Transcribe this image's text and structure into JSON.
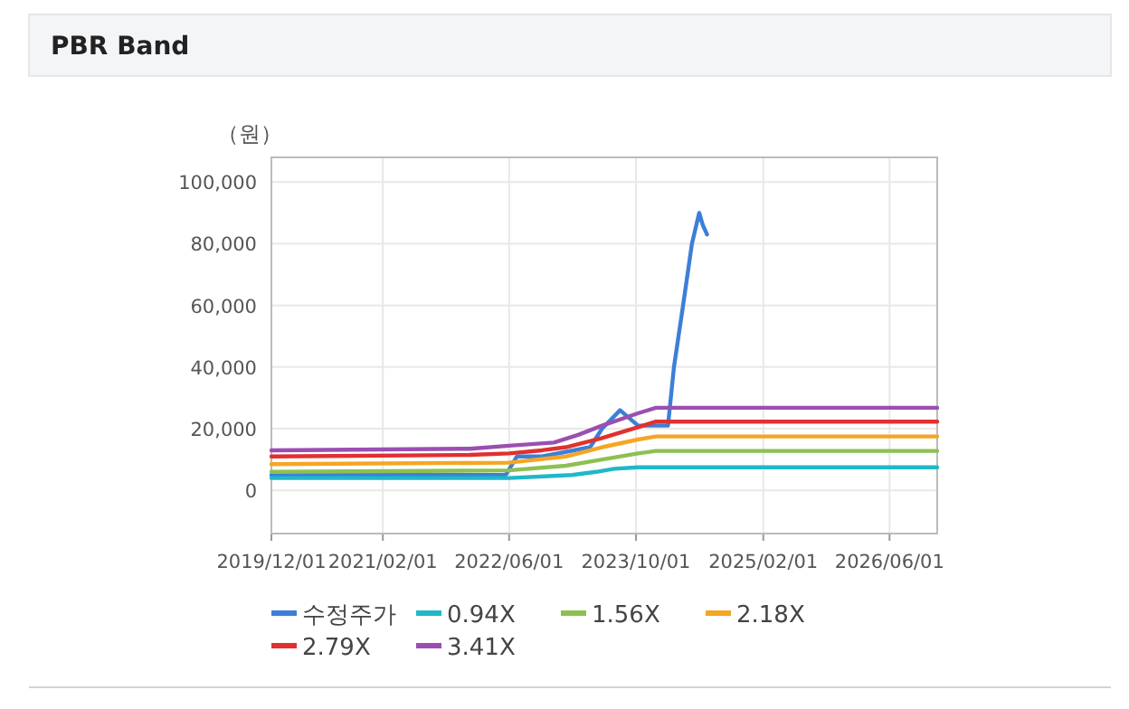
{
  "chart_data": {
    "type": "line",
    "title": "PBR Band",
    "ylabel": "（원）",
    "xlim": [
      "2019-12-01",
      "2026-12-01"
    ],
    "xticks": [
      {
        "value": "2019-12-01",
        "label": "2019/12/01"
      },
      {
        "value": "2021-02-01",
        "label": "2021/02/01"
      },
      {
        "value": "2022-06-01",
        "label": "2022/06/01"
      },
      {
        "value": "2023-10-01",
        "label": "2023/10/01"
      },
      {
        "value": "2025-02-01",
        "label": "2025/02/01"
      },
      {
        "value": "2026-06-01",
        "label": "2026/06/01"
      }
    ],
    "ylim": [
      -14000,
      108000
    ],
    "yticks": [
      {
        "value": 0,
        "label": "0"
      },
      {
        "value": 20000,
        "label": "20,000"
      },
      {
        "value": 40000,
        "label": "40,000"
      },
      {
        "value": 60000,
        "label": "60,000"
      },
      {
        "value": 80000,
        "label": "80,000"
      },
      {
        "value": 100000,
        "label": "100,000"
      }
    ],
    "grid": true,
    "legend": "bottom",
    "marker": "none",
    "line_style": "solid",
    "series": [
      {
        "name": "수정주가",
        "color": "#3c7fd8",
        "x": [
          "2019-12-01",
          "2022-05-19",
          "2022-07-01",
          "2022-10-05",
          "2023-04-08",
          "2023-05-24",
          "2023-08-01",
          "2023-10-09",
          "2024-02-01",
          "2024-02-24",
          "2024-03-30",
          "2024-05-03",
          "2024-05-31",
          "2024-06-14",
          "2024-06-30"
        ],
        "values": [
          5000,
          5000,
          11000,
          11000,
          14000,
          20000,
          26000,
          21000,
          21000,
          40000,
          60000,
          80000,
          90000,
          86000,
          83000
        ]
      },
      {
        "name": "0.94X",
        "color": "#1fb8c9",
        "x": [
          "2019-12-01",
          "2022-05-31",
          "2023-01-28",
          "2023-05-01",
          "2023-07-09",
          "2023-10-09",
          "2026-12-01"
        ],
        "values": [
          4000,
          4000,
          5000,
          6000,
          7000,
          7500,
          7500
        ]
      },
      {
        "name": "1.56X",
        "color": "#8cc152",
        "x": [
          "2019-12-01",
          "2022-05-31",
          "2023-01-05",
          "2023-05-24",
          "2023-10-09",
          "2023-12-17",
          "2026-12-01"
        ],
        "values": [
          6000,
          6500,
          8000,
          10000,
          12000,
          12800,
          12800
        ]
      },
      {
        "name": "2.18X",
        "color": "#f5a623",
        "x": [
          "2019-12-01",
          "2022-05-31",
          "2023-01-05",
          "2023-05-24",
          "2023-10-09",
          "2023-12-17",
          "2026-12-01"
        ],
        "values": [
          8500,
          9000,
          11000,
          14000,
          16500,
          17500,
          17500
        ]
      },
      {
        "name": "2.79X",
        "color": "#e0302f",
        "x": [
          "2019-12-01",
          "2022-01-01",
          "2022-05-31",
          "2022-10-05",
          "2023-01-05",
          "2023-05-24",
          "2023-10-09",
          "2023-12-17",
          "2026-12-01"
        ],
        "values": [
          11000,
          11500,
          12000,
          13000,
          14000,
          17000,
          20500,
          22300,
          22300
        ]
      },
      {
        "name": "3.41X",
        "color": "#9b4fb0",
        "x": [
          "2019-12-01",
          "2022-01-01",
          "2022-05-31",
          "2022-11-20",
          "2023-02-21",
          "2023-05-24",
          "2023-10-09",
          "2023-12-17",
          "2026-12-01"
        ],
        "values": [
          13000,
          13500,
          14500,
          15500,
          18000,
          21000,
          25000,
          26800,
          26800
        ]
      }
    ]
  }
}
